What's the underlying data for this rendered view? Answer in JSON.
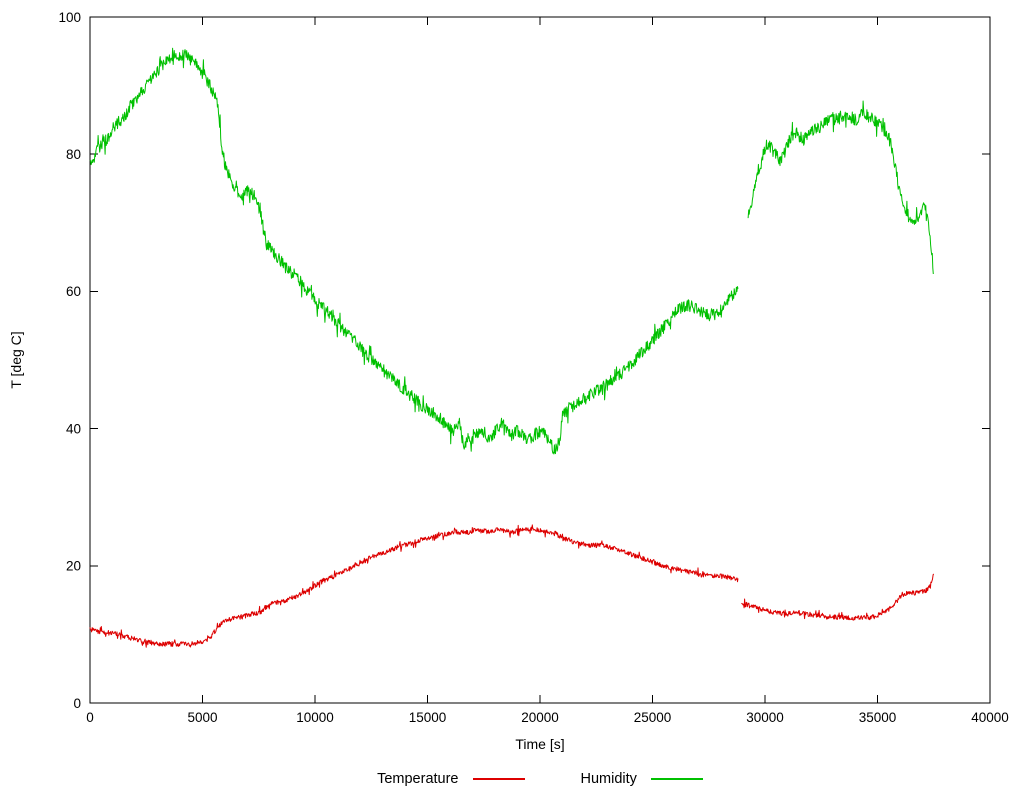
{
  "figure": {
    "background": "#ffffff",
    "border_color": "#000000",
    "tick_label_color": "#000000"
  },
  "chart_data": {
    "type": "line",
    "title": "",
    "xlabel": "Time [s]",
    "ylabel": "T [deg C]",
    "xlim": [
      0,
      40000
    ],
    "ylim": [
      0,
      100
    ],
    "x_ticks": [
      0,
      5000,
      10000,
      15000,
      20000,
      25000,
      30000,
      35000,
      40000
    ],
    "y_ticks": [
      0,
      20,
      40,
      60,
      80,
      100
    ],
    "grid": false,
    "legend_position": "bottom-center",
    "series": [
      {
        "name": "Temperature",
        "color": "#dd0000",
        "noise": 0.35,
        "segments": [
          [
            [
              0,
              10.7
            ],
            [
              700,
              10.3
            ],
            [
              1200,
              10.0
            ],
            [
              1800,
              9.5
            ],
            [
              2300,
              9.0
            ],
            [
              2800,
              8.7
            ],
            [
              3200,
              8.6
            ],
            [
              4600,
              8.6
            ],
            [
              5000,
              9.0
            ],
            [
              5400,
              9.6
            ],
            [
              5600,
              10.8
            ],
            [
              5900,
              11.8
            ],
            [
              6300,
              12.3
            ],
            [
              6800,
              12.6
            ],
            [
              7200,
              13.0
            ],
            [
              7600,
              13.3
            ],
            [
              8000,
              14.4
            ],
            [
              8700,
              15.0
            ],
            [
              9200,
              15.6
            ],
            [
              9700,
              16.5
            ],
            [
              10200,
              17.5
            ],
            [
              10700,
              18.3
            ],
            [
              11200,
              19.0
            ],
            [
              11700,
              20.0
            ],
            [
              12200,
              20.8
            ],
            [
              12700,
              21.5
            ],
            [
              13200,
              22.0
            ],
            [
              13700,
              22.8
            ],
            [
              14200,
              23.2
            ],
            [
              14700,
              23.8
            ],
            [
              15200,
              24.2
            ],
            [
              15700,
              24.5
            ],
            [
              16200,
              25.0
            ],
            [
              16700,
              24.8
            ],
            [
              17200,
              25.2
            ],
            [
              17700,
              25.0
            ],
            [
              18200,
              25.3
            ],
            [
              18700,
              24.9
            ],
            [
              19200,
              25.2
            ],
            [
              19700,
              25.3
            ],
            [
              20200,
              25.0
            ],
            [
              20700,
              24.7
            ],
            [
              21000,
              24.0
            ],
            [
              21400,
              23.5
            ],
            [
              21800,
              23.2
            ],
            [
              22300,
              23.0
            ],
            [
              22800,
              23.0
            ],
            [
              23300,
              22.5
            ],
            [
              23800,
              22.0
            ],
            [
              24300,
              21.3
            ],
            [
              24800,
              20.8
            ],
            [
              25300,
              20.2
            ],
            [
              25800,
              19.8
            ],
            [
              26300,
              19.3
            ],
            [
              26800,
              19.0
            ],
            [
              27300,
              18.7
            ],
            [
              27800,
              18.5
            ],
            [
              28300,
              18.4
            ],
            [
              28800,
              18.0
            ]
          ],
          [
            [
              28950,
              14.5
            ],
            [
              29300,
              14.2
            ],
            [
              29700,
              13.8
            ],
            [
              30100,
              13.4
            ],
            [
              30500,
              13.2
            ],
            [
              31000,
              13.0
            ],
            [
              31400,
              13.2
            ],
            [
              31800,
              13.0
            ],
            [
              32200,
              12.8
            ],
            [
              32600,
              12.6
            ],
            [
              33000,
              12.5
            ],
            [
              33500,
              12.5
            ],
            [
              34000,
              12.4
            ],
            [
              34500,
              12.4
            ],
            [
              34900,
              12.6
            ],
            [
              35200,
              13.0
            ],
            [
              35500,
              13.6
            ],
            [
              35800,
              14.6
            ],
            [
              36100,
              15.8
            ],
            [
              36400,
              16.2
            ],
            [
              36700,
              16.0
            ],
            [
              37000,
              16.3
            ],
            [
              37200,
              16.5
            ],
            [
              37350,
              17.0
            ],
            [
              37450,
              18.4
            ],
            [
              37500,
              19.2
            ]
          ]
        ]
      },
      {
        "name": "Humidity",
        "color": "#00c000",
        "noise": 0.9,
        "segments": [
          [
            [
              0,
              78.5
            ],
            [
              400,
              81.0
            ],
            [
              700,
              82.0
            ],
            [
              1100,
              84.0
            ],
            [
              1500,
              85.5
            ],
            [
              1900,
              87.5
            ],
            [
              2300,
              89.0
            ],
            [
              2700,
              91.0
            ],
            [
              3200,
              93.0
            ],
            [
              3700,
              94.3
            ],
            [
              4200,
              94.5
            ],
            [
              4700,
              93.2
            ],
            [
              5100,
              91.5
            ],
            [
              5400,
              89.5
            ],
            [
              5700,
              87.0
            ],
            [
              5850,
              81.0
            ],
            [
              6000,
              78.5
            ],
            [
              6300,
              76.0
            ],
            [
              6700,
              73.8
            ],
            [
              7100,
              74.8
            ],
            [
              7400,
              73.5
            ],
            [
              7600,
              71.0
            ],
            [
              7800,
              67.5
            ],
            [
              8200,
              65.5
            ],
            [
              8700,
              63.5
            ],
            [
              9200,
              62.0
            ],
            [
              9700,
              60.0
            ],
            [
              10200,
              58.0
            ],
            [
              10700,
              56.5
            ],
            [
              11200,
              54.5
            ],
            [
              11700,
              53.0
            ],
            [
              12200,
              51.0
            ],
            [
              12700,
              49.5
            ],
            [
              13200,
              48.0
            ],
            [
              13700,
              46.5
            ],
            [
              14200,
              45.0
            ],
            [
              14700,
              43.5
            ],
            [
              15200,
              42.5
            ],
            [
              15700,
              41.0
            ],
            [
              16100,
              39.5
            ],
            [
              16400,
              41.0
            ],
            [
              16600,
              37.8
            ],
            [
              17000,
              38.5
            ],
            [
              17400,
              39.8
            ],
            [
              17800,
              38.5
            ],
            [
              18100,
              40.0
            ],
            [
              18400,
              40.8
            ],
            [
              18700,
              39.0
            ],
            [
              19000,
              39.8
            ],
            [
              19400,
              38.3
            ],
            [
              19800,
              39.2
            ],
            [
              20100,
              39.6
            ],
            [
              20400,
              38.0
            ],
            [
              20700,
              36.8
            ],
            [
              20900,
              38.5
            ],
            [
              21000,
              42.0
            ],
            [
              21300,
              43.0
            ],
            [
              21800,
              44.0
            ],
            [
              22300,
              45.0
            ],
            [
              23000,
              46.5
            ],
            [
              23600,
              48.0
            ],
            [
              24200,
              50.0
            ],
            [
              24800,
              52.0
            ],
            [
              25300,
              54.0
            ],
            [
              25800,
              56.0
            ],
            [
              26200,
              57.5
            ],
            [
              26600,
              58.0
            ],
            [
              27000,
              57.3
            ],
            [
              27300,
              57.0
            ],
            [
              27700,
              56.5
            ],
            [
              28000,
              57.3
            ],
            [
              28400,
              58.8
            ],
            [
              28800,
              60.5
            ]
          ],
          [
            [
              29250,
              71.0
            ],
            [
              29500,
              74.5
            ],
            [
              29700,
              77.0
            ],
            [
              30000,
              80.5
            ],
            [
              30200,
              81.3
            ],
            [
              30450,
              80.0
            ],
            [
              30650,
              79.0
            ],
            [
              30850,
              80.0
            ],
            [
              31100,
              82.3
            ],
            [
              31400,
              83.0
            ],
            [
              31700,
              82.0
            ],
            [
              32100,
              83.5
            ],
            [
              32500,
              84.0
            ],
            [
              32900,
              85.4
            ],
            [
              33200,
              85.0
            ],
            [
              33600,
              86.0
            ],
            [
              34000,
              85.0
            ],
            [
              34400,
              86.0
            ],
            [
              34800,
              85.0
            ],
            [
              35200,
              84.0
            ],
            [
              35500,
              82.5
            ],
            [
              35800,
              78.0
            ],
            [
              36000,
              74.0
            ],
            [
              36300,
              71.5
            ],
            [
              36600,
              69.5
            ],
            [
              36900,
              71.2
            ],
            [
              37100,
              72.5
            ],
            [
              37250,
              71.0
            ],
            [
              37400,
              66.0
            ],
            [
              37500,
              62.0
            ]
          ]
        ]
      }
    ]
  }
}
